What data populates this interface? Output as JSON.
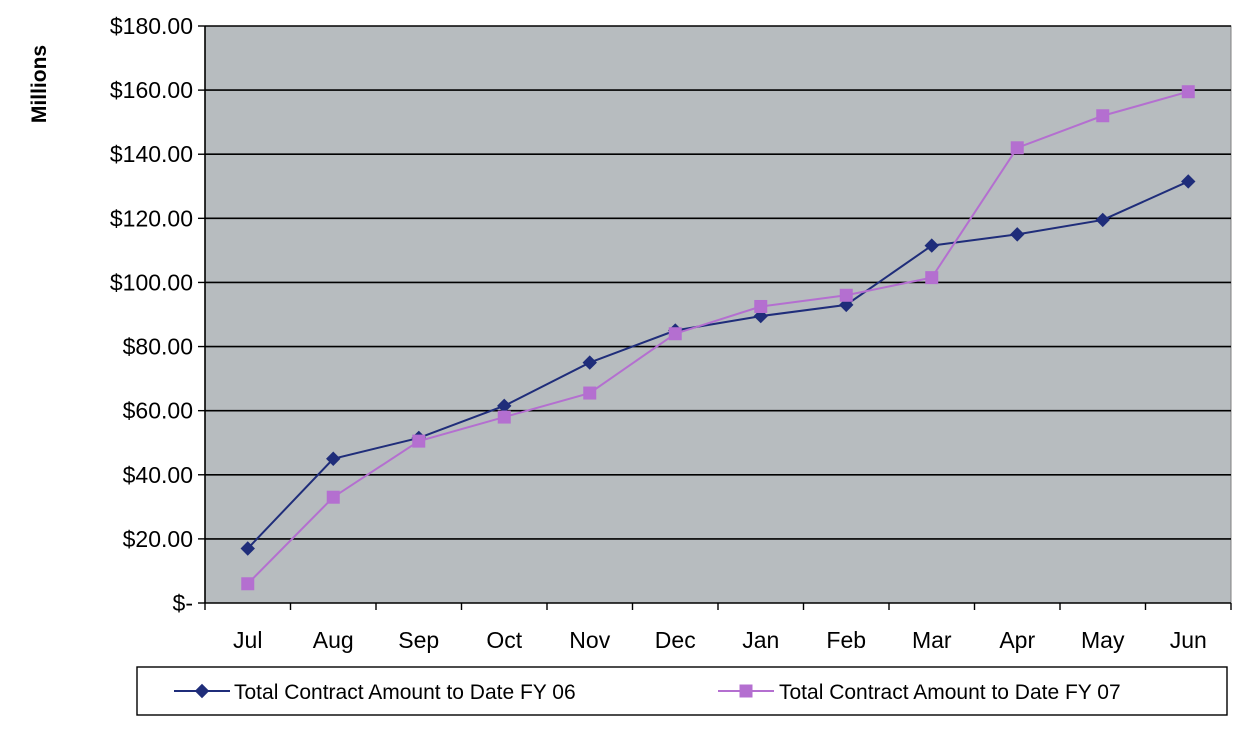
{
  "chart_data": {
    "type": "line",
    "title": "",
    "xlabel": "",
    "ylabel": "Millions",
    "categories": [
      "Jul",
      "Aug",
      "Sep",
      "Oct",
      "Nov",
      "Dec",
      "Jan",
      "Feb",
      "Mar",
      "Apr",
      "May",
      "Jun"
    ],
    "ylim": [
      0,
      180
    ],
    "yticks": [
      0,
      20,
      40,
      60,
      80,
      100,
      120,
      140,
      160,
      180
    ],
    "ytick_labels": [
      "$-",
      "$20.00",
      "$40.00",
      "$60.00",
      "$80.00",
      "$100.00",
      "$120.00",
      "$140.00",
      "$160.00",
      "$180.00"
    ],
    "grid": true,
    "legend_position": "bottom",
    "series": [
      {
        "name": "Total Contract Amount to Date FY 06",
        "color": "#1f2d7a",
        "marker": "diamond",
        "values": [
          17,
          45,
          51.5,
          61.5,
          75,
          85,
          89.5,
          93,
          111.5,
          115,
          119.5,
          131.5
        ]
      },
      {
        "name": "Total Contract Amount to Date FY 07",
        "color": "#b46fd0",
        "marker": "square",
        "values": [
          6,
          33,
          50.5,
          58,
          65.5,
          84,
          92.5,
          96,
          101.5,
          142,
          152,
          159.5
        ]
      }
    ],
    "plot_background": "#b7bcbf",
    "gridline_color": "#000000"
  }
}
